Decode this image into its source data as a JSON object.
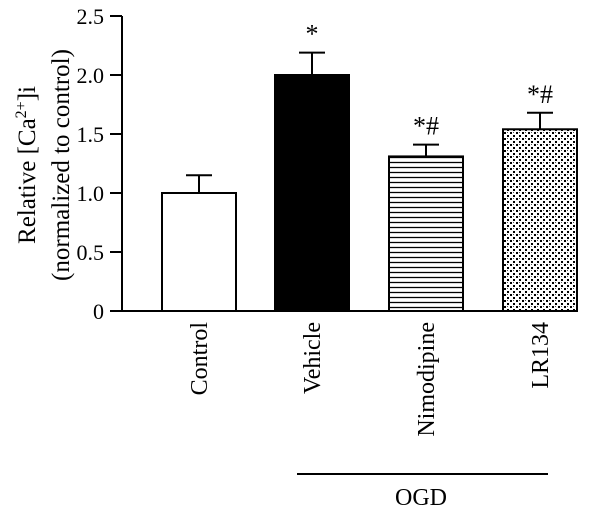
{
  "chart_data": {
    "type": "bar",
    "ylabel_lines": [
      "Relative [Ca",
      "2+",
      "]i",
      "(normalized to control)"
    ],
    "ylim": [
      0,
      2.5
    ],
    "yticks": [
      "0",
      "0.5",
      "1.0",
      "1.5",
      "2.0",
      "2.5"
    ],
    "ytick_values": [
      0,
      0.5,
      1.0,
      1.5,
      2.0,
      2.5
    ],
    "categories": [
      "Control",
      "Vehicle",
      "Nimodipine",
      "LR134"
    ],
    "values": [
      1.0,
      2.0,
      1.31,
      1.54
    ],
    "errors": [
      0.15,
      0.19,
      0.1,
      0.14
    ],
    "annotations": [
      "",
      "*",
      "*#",
      "*#"
    ],
    "fills": [
      "white",
      "black",
      "horizontal-lines",
      "dotted-pattern"
    ],
    "group": {
      "label": "OGD",
      "covers": [
        "Vehicle",
        "Nimodipine",
        "LR134"
      ]
    },
    "grid": false,
    "legend": "none"
  }
}
